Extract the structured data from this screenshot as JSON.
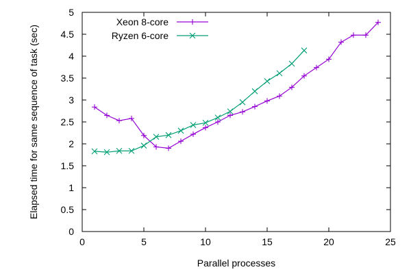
{
  "chart_data": {
    "type": "line",
    "xlabel": "Parallel processes",
    "ylabel": "Elapsed time for same sequence of task (sec)",
    "xlim": [
      0,
      25
    ],
    "ylim": [
      0,
      5
    ],
    "xticks": [
      0,
      5,
      10,
      15,
      20,
      25
    ],
    "yticks": [
      0,
      0.5,
      1,
      1.5,
      2,
      2.5,
      3,
      3.5,
      4,
      4.5,
      5
    ],
    "xtick_labels": [
      "0",
      "5",
      "10",
      "15",
      "20",
      "25"
    ],
    "ytick_labels": [
      "0",
      "0.5",
      "1",
      "1.5",
      "2",
      "2.5",
      "3",
      "3.5",
      "4",
      "4.5",
      "5"
    ],
    "grid": false,
    "legend_position": "top-left",
    "series": [
      {
        "name": "Xeon 8-core",
        "color": "#9400d3",
        "marker": "plus",
        "x": [
          1,
          2,
          3,
          4,
          5,
          6,
          7,
          8,
          9,
          10,
          11,
          12,
          13,
          14,
          15,
          16,
          17,
          18,
          19,
          20,
          21,
          22,
          23,
          24
        ],
        "y": [
          2.84,
          2.65,
          2.53,
          2.58,
          2.19,
          1.93,
          1.9,
          2.06,
          2.22,
          2.37,
          2.5,
          2.65,
          2.73,
          2.85,
          2.98,
          3.09,
          3.29,
          3.55,
          3.74,
          3.93,
          4.32,
          4.48,
          4.48,
          4.77
        ]
      },
      {
        "name": "Ryzen 6-core",
        "color": "#009e73",
        "marker": "cross",
        "x": [
          1,
          2,
          3,
          4,
          5,
          6,
          7,
          8,
          9,
          10,
          11,
          12,
          13,
          14,
          15,
          16,
          17,
          18
        ],
        "y": [
          1.83,
          1.81,
          1.84,
          1.84,
          1.96,
          2.16,
          2.2,
          2.3,
          2.43,
          2.48,
          2.6,
          2.74,
          2.95,
          3.2,
          3.43,
          3.61,
          3.83,
          4.13
        ]
      }
    ]
  }
}
